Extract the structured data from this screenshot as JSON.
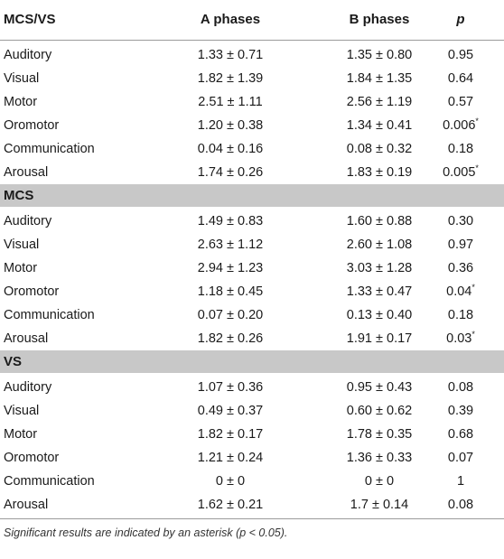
{
  "header": {
    "group_label": "MCS/VS",
    "col_a": "A phases",
    "col_b": "B phases",
    "col_p": "p"
  },
  "groups": [
    {
      "label": "",
      "rows": [
        {
          "name": "Auditory",
          "a": "1.33 ± 0.71",
          "b": "1.35 ± 0.80",
          "p": "0.95",
          "star": ""
        },
        {
          "name": "Visual",
          "a": "1.82 ± 1.39",
          "b": "1.84 ± 1.35",
          "p": "0.64",
          "star": ""
        },
        {
          "name": "Motor",
          "a": "2.51 ± 1.11",
          "b": "2.56 ± 1.19",
          "p": "0.57",
          "star": ""
        },
        {
          "name": "Oromotor",
          "a": "1.20 ± 0.38",
          "b": "1.34 ± 0.41",
          "p": "0.006",
          "star": "*"
        },
        {
          "name": "Communication",
          "a": "0.04 ± 0.16",
          "b": "0.08 ± 0.32",
          "p": "0.18",
          "star": ""
        },
        {
          "name": "Arousal",
          "a": "1.74 ± 0.26",
          "b": "1.83 ± 0.19",
          "p": "0.005",
          "star": "*"
        }
      ]
    },
    {
      "label": "MCS",
      "rows": [
        {
          "name": "Auditory",
          "a": "1.49 ± 0.83",
          "b": "1.60 ± 0.88",
          "p": "0.30",
          "star": ""
        },
        {
          "name": "Visual",
          "a": "2.63 ± 1.12",
          "b": "2.60 ± 1.08",
          "p": "0.97",
          "star": ""
        },
        {
          "name": "Motor",
          "a": "2.94 ± 1.23",
          "b": "3.03 ± 1.28",
          "p": "0.36",
          "star": ""
        },
        {
          "name": "Oromotor",
          "a": "1.18 ± 0.45",
          "b": "1.33 ± 0.47",
          "p": "0.04",
          "star": "*"
        },
        {
          "name": "Communication",
          "a": "0.07 ± 0.20",
          "b": "0.13 ± 0.40",
          "p": "0.18",
          "star": ""
        },
        {
          "name": "Arousal",
          "a": "1.82 ± 0.26",
          "b": "1.91 ± 0.17",
          "p": "0.03",
          "star": "*"
        }
      ]
    },
    {
      "label": "VS",
      "rows": [
        {
          "name": "Auditory",
          "a": "1.07 ± 0.36",
          "b": "0.95 ± 0.43",
          "p": "0.08",
          "star": ""
        },
        {
          "name": "Visual",
          "a": "0.49 ± 0.37",
          "b": "0.60 ± 0.62",
          "p": "0.39",
          "star": ""
        },
        {
          "name": "Motor",
          "a": "1.82 ± 0.17",
          "b": "1.78 ± 0.35",
          "p": "0.68",
          "star": ""
        },
        {
          "name": "Oromotor",
          "a": "1.21 ± 0.24",
          "b": "1.36 ± 0.33",
          "p": "0.07",
          "star": ""
        },
        {
          "name": "Communication",
          "a": "0 ± 0",
          "b": "0 ± 0",
          "p": "1",
          "star": ""
        },
        {
          "name": "Arousal",
          "a": "1.62 ± 0.21",
          "b": "1.7 ± 0.14",
          "p": "0.08",
          "star": ""
        }
      ]
    }
  ],
  "footnote": "Significant results are indicated by an asterisk (p < 0.05)."
}
